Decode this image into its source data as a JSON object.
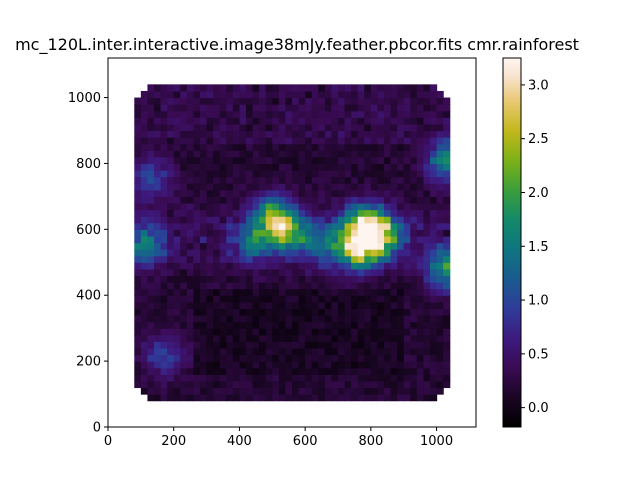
{
  "chart_data": {
    "type": "heatmap",
    "title": "mc_120L.inter.interactive.image38mJy.feather.pbcor.fits cmr.rainforest",
    "colormap": "cmr.rainforest",
    "xlim": [
      0,
      1120
    ],
    "ylim": [
      0,
      1120
    ],
    "x_ticks": [
      "0",
      "200",
      "400",
      "600",
      "800",
      "1000"
    ],
    "y_ticks": [
      "0",
      "200",
      "400",
      "600",
      "800",
      "1000"
    ],
    "colorbar": {
      "range": [
        -0.18,
        3.25
      ],
      "ticks": [
        "0.0",
        "0.5",
        "1.0",
        "1.5",
        "2.0",
        "2.5",
        "3.0"
      ]
    },
    "image_extent": {
      "x": [
        80,
        1040
      ],
      "y": [
        80,
        1040
      ]
    },
    "emission_features": [
      {
        "x": 780,
        "y": 610,
        "value": 2.6
      },
      {
        "x": 830,
        "y": 580,
        "value": 2.2
      },
      {
        "x": 760,
        "y": 540,
        "value": 2.3
      },
      {
        "x": 540,
        "y": 600,
        "value": 1.9
      },
      {
        "x": 500,
        "y": 640,
        "value": 1.7
      },
      {
        "x": 1030,
        "y": 480,
        "value": 1.8
      },
      {
        "x": 1030,
        "y": 810,
        "value": 1.6
      },
      {
        "x": 110,
        "y": 550,
        "value": 1.3
      },
      {
        "x": 130,
        "y": 760,
        "value": 1.0
      },
      {
        "x": 170,
        "y": 220,
        "value": 0.9
      },
      {
        "x": 440,
        "y": 560,
        "value": 1.0
      },
      {
        "x": 650,
        "y": 560,
        "value": 1.2
      }
    ]
  }
}
